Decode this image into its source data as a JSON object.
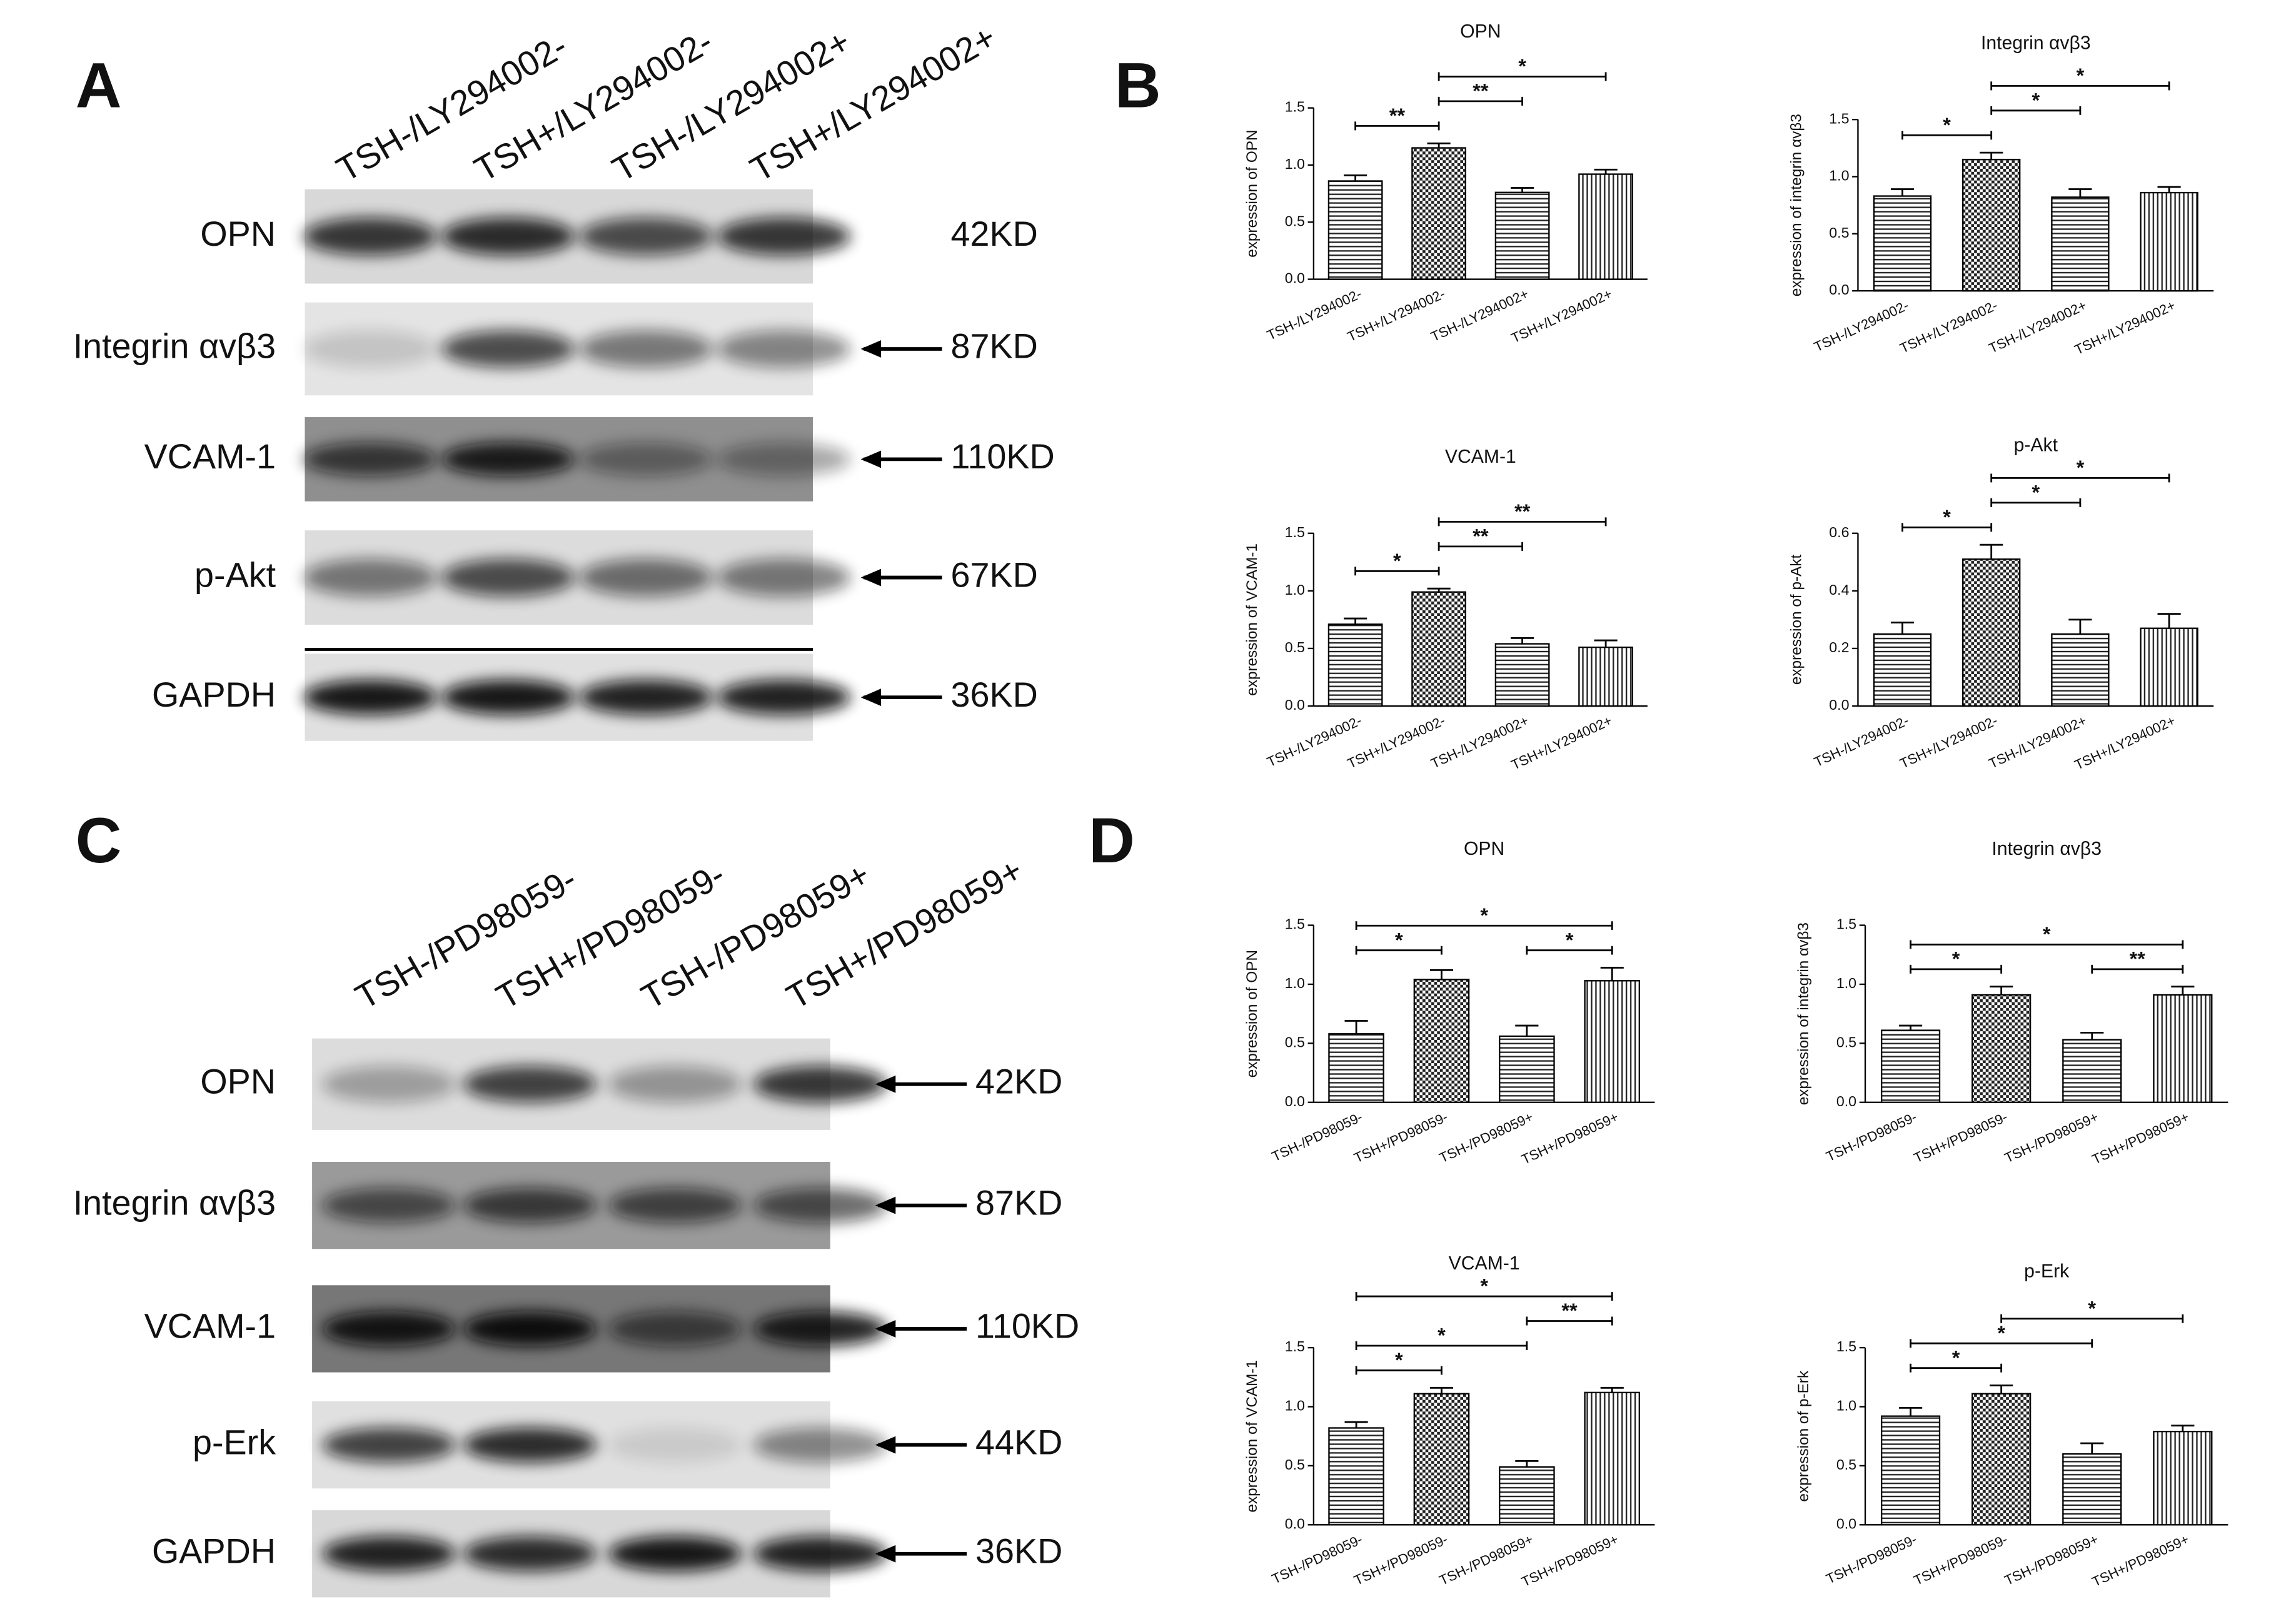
{
  "panel_labels": [
    "A",
    "B",
    "C",
    "D"
  ],
  "blots": [
    {
      "lanes": [
        "TSH-/LY294002-",
        "TSH+/LY294002-",
        "TSH-/LY294002+",
        "TSH+/LY294002+"
      ],
      "rows": [
        {
          "protein": "OPN",
          "size": "42KD",
          "arrow": false
        },
        {
          "protein": "Integrin αvβ3",
          "size": "87KD",
          "arrow": true
        },
        {
          "protein": "VCAM-1",
          "size": "110KD",
          "arrow": true
        },
        {
          "protein": "p-Akt",
          "size": "67KD",
          "arrow": true
        },
        {
          "protein": "GAPDH",
          "size": "36KD",
          "arrow": true
        }
      ]
    },
    {
      "lanes": [
        "TSH-/PD98059-",
        "TSH+/PD98059-",
        "TSH-/PD98059+",
        "TSH+/PD98059+"
      ],
      "rows": [
        {
          "protein": "OPN",
          "size": "42KD",
          "arrow": true
        },
        {
          "protein": "Integrin αvβ3",
          "size": "87KD",
          "arrow": true
        },
        {
          "protein": "VCAM-1",
          "size": "110KD",
          "arrow": true
        },
        {
          "protein": "p-Erk",
          "size": "44KD",
          "arrow": true
        },
        {
          "protein": "GAPDH",
          "size": "36KD",
          "arrow": true
        }
      ]
    }
  ],
  "chart_data": [
    {
      "type": "bar",
      "title": "OPN",
      "y_label": "expression of OPN",
      "categories": [
        "TSH-/LY294002-",
        "TSH+/LY294002-",
        "TSH-/LY294002+",
        "TSH+/LY294002+"
      ],
      "values": [
        0.86,
        1.15,
        0.76,
        0.92
      ],
      "errors": [
        0.05,
        0.04,
        0.04,
        0.04
      ],
      "patterns": [
        "horizontal",
        "checker",
        "horizontal",
        "vertical"
      ],
      "ylim": [
        0,
        1.5
      ],
      "yticks": [
        {
          "value": 0,
          "label": "0.0"
        },
        0.5,
        {
          "value": 1,
          "label": "1.0"
        },
        1.5
      ],
      "brackets": [
        {
          "from": "TSH-/LY294002-",
          "to": "TSH+/LY294002-",
          "label": "**"
        },
        {
          "from": "TSH+/LY294002-",
          "to": "TSH-/LY294002+",
          "label": "**"
        },
        {
          "from": "TSH+/LY294002-",
          "to": "TSH+/LY294002+",
          "label": "*"
        }
      ]
    },
    {
      "type": "bar",
      "title": "Integrin αvβ3",
      "y_label": "expression of integrin αvβ3",
      "categories": [
        "TSH-/LY294002-",
        "TSH+/LY294002-",
        "TSH-/LY294002+",
        "TSH+/LY294002+"
      ],
      "values": [
        0.83,
        1.15,
        0.82,
        0.86
      ],
      "errors": [
        0.06,
        0.06,
        0.07,
        0.05
      ],
      "patterns": [
        "horizontal",
        "checker",
        "horizontal",
        "vertical"
      ],
      "ylim": [
        0,
        1.5
      ],
      "yticks": [
        {
          "value": 0,
          "label": "0.0"
        },
        0.5,
        {
          "value": 1,
          "label": "1.0"
        },
        1.5
      ],
      "brackets": [
        {
          "from": "TSH-/LY294002-",
          "to": "TSH+/LY294002-",
          "label": "*"
        },
        {
          "from": "TSH+/LY294002-",
          "to": "TSH-/LY294002+",
          "label": "*"
        },
        {
          "from": "TSH+/LY294002-",
          "to": "TSH+/LY294002+",
          "label": "*"
        }
      ]
    },
    {
      "type": "bar",
      "title": "VCAM-1",
      "y_label": "expression of VCAM-1",
      "categories": [
        "TSH-/LY294002-",
        "TSH+/LY294002-",
        "TSH-/LY294002+",
        "TSH+/LY294002+"
      ],
      "values": [
        0.71,
        0.99,
        0.54,
        0.51
      ],
      "errors": [
        0.05,
        0.03,
        0.05,
        0.06
      ],
      "patterns": [
        "horizontal",
        "checker",
        "horizontal",
        "vertical"
      ],
      "ylim": [
        0,
        1.5
      ],
      "yticks": [
        {
          "value": 0,
          "label": "0.0"
        },
        0.5,
        {
          "value": 1,
          "label": "1.0"
        },
        1.5
      ],
      "brackets": [
        {
          "from": "TSH-/LY294002-",
          "to": "TSH+/LY294002-",
          "label": "*"
        },
        {
          "from": "TSH+/LY294002-",
          "to": "TSH-/LY294002+",
          "label": "**"
        },
        {
          "from": "TSH+/LY294002-",
          "to": "TSH+/LY294002+",
          "label": "**"
        }
      ]
    },
    {
      "type": "bar",
      "title": "p-Akt",
      "y_label": "expression of p-Akt",
      "categories": [
        "TSH-/LY294002-",
        "TSH+/LY294002-",
        "TSH-/LY294002+",
        "TSH+/LY294002+"
      ],
      "values": [
        0.25,
        0.51,
        0.25,
        0.27
      ],
      "errors": [
        0.04,
        0.05,
        0.05,
        0.05
      ],
      "patterns": [
        "horizontal",
        "checker",
        "horizontal",
        "vertical"
      ],
      "ylim": [
        0,
        0.6
      ],
      "yticks": [
        {
          "value": 0,
          "label": "0.0"
        },
        0.2,
        0.4,
        0.6
      ],
      "brackets": [
        {
          "from": "TSH-/LY294002-",
          "to": "TSH+/LY294002-",
          "label": "*"
        },
        {
          "from": "TSH+/LY294002-",
          "to": "TSH-/LY294002+",
          "label": "*"
        },
        {
          "from": "TSH+/LY294002-",
          "to": "TSH+/LY294002+",
          "label": "*"
        }
      ]
    },
    {
      "type": "bar",
      "title": "OPN",
      "y_label": "expression of OPN",
      "categories": [
        "TSH-/PD98059-",
        "TSH+/PD98059-",
        "TSH-/PD98059+",
        "TSH+/PD98059+"
      ],
      "values": [
        0.58,
        1.04,
        0.56,
        1.03
      ],
      "errors": [
        0.11,
        0.08,
        0.09,
        0.11
      ],
      "patterns": [
        "horizontal",
        "checker",
        "horizontal",
        "vertical"
      ],
      "ylim": [
        0,
        1.5
      ],
      "yticks": [
        {
          "value": 0,
          "label": "0.0"
        },
        0.5,
        {
          "value": 1,
          "label": "1.0"
        },
        1.5
      ],
      "brackets": [
        {
          "from": "TSH-/PD98059-",
          "to": "TSH+/PD98059-",
          "label": "*"
        },
        {
          "from": "TSH-/PD98059+",
          "to": "TSH+/PD98059+",
          "label": "*"
        },
        {
          "from": "TSH-/PD98059-",
          "to": "TSH+/PD98059+",
          "label": "*"
        }
      ]
    },
    {
      "type": "bar",
      "title": "Integrin αvβ3",
      "y_label": "expression of integrin αvβ3",
      "categories": [
        "TSH-/PD98059-",
        "TSH+/PD98059-",
        "TSH-/PD98059+",
        "TSH+/PD98059+"
      ],
      "values": [
        0.61,
        0.91,
        0.53,
        0.91
      ],
      "errors": [
        0.04,
        0.07,
        0.06,
        0.07
      ],
      "patterns": [
        "horizontal",
        "checker",
        "horizontal",
        "vertical"
      ],
      "ylim": [
        0,
        1.5
      ],
      "yticks": [
        {
          "value": 0,
          "label": "0.0"
        },
        0.5,
        {
          "value": 1,
          "label": "1.0"
        },
        1.5
      ],
      "brackets": [
        {
          "from": "TSH-/PD98059-",
          "to": "TSH+/PD98059-",
          "label": "*"
        },
        {
          "from": "TSH-/PD98059+",
          "to": "TSH+/PD98059+",
          "label": "**"
        },
        {
          "from": "TSH-/PD98059-",
          "to": "TSH+/PD98059+",
          "label": "*"
        }
      ]
    },
    {
      "type": "bar",
      "title": "VCAM-1",
      "y_label": "expression of VCAM-1",
      "categories": [
        "TSH-/PD98059-",
        "TSH+/PD98059-",
        "TSH-/PD98059+",
        "TSH+/PD98059+"
      ],
      "values": [
        0.82,
        1.11,
        0.49,
        1.12
      ],
      "errors": [
        0.05,
        0.05,
        0.05,
        0.04
      ],
      "patterns": [
        "horizontal",
        "checker",
        "horizontal",
        "vertical"
      ],
      "ylim": [
        0,
        1.5
      ],
      "yticks": [
        {
          "value": 0,
          "label": "0.0"
        },
        0.5,
        {
          "value": 1,
          "label": "1.0"
        },
        1.5
      ],
      "brackets": [
        {
          "from": "TSH-/PD98059-",
          "to": "TSH+/PD98059-",
          "label": "*"
        },
        {
          "from": "TSH-/PD98059-",
          "to": "TSH-/PD98059+",
          "label": "*"
        },
        {
          "from": "TSH-/PD98059+",
          "to": "TSH+/PD98059+",
          "label": "**"
        },
        {
          "from": "TSH-/PD98059-",
          "to": "TSH+/PD98059+",
          "label": "*"
        }
      ]
    },
    {
      "type": "bar",
      "title": "p-Erk",
      "y_label": "expression of p-Erk",
      "categories": [
        "TSH-/PD98059-",
        "TSH+/PD98059-",
        "TSH-/PD98059+",
        "TSH+/PD98059+"
      ],
      "values": [
        0.92,
        1.11,
        0.6,
        0.79
      ],
      "errors": [
        0.07,
        0.07,
        0.09,
        0.05
      ],
      "patterns": [
        "horizontal",
        "checker",
        "horizontal",
        "vertical"
      ],
      "ylim": [
        0,
        1.5
      ],
      "yticks": [
        {
          "value": 0,
          "label": "0.0"
        },
        0.5,
        {
          "value": 1,
          "label": "1.0"
        },
        1.5
      ],
      "brackets": [
        {
          "from": "TSH-/PD98059-",
          "to": "TSH+/PD98059-",
          "label": "*"
        },
        {
          "from": "TSH-/PD98059-",
          "to": "TSH-/PD98059+",
          "label": "*"
        },
        {
          "from": "TSH+/PD98059-",
          "to": "TSH+/PD98059+",
          "label": "*"
        }
      ]
    }
  ]
}
